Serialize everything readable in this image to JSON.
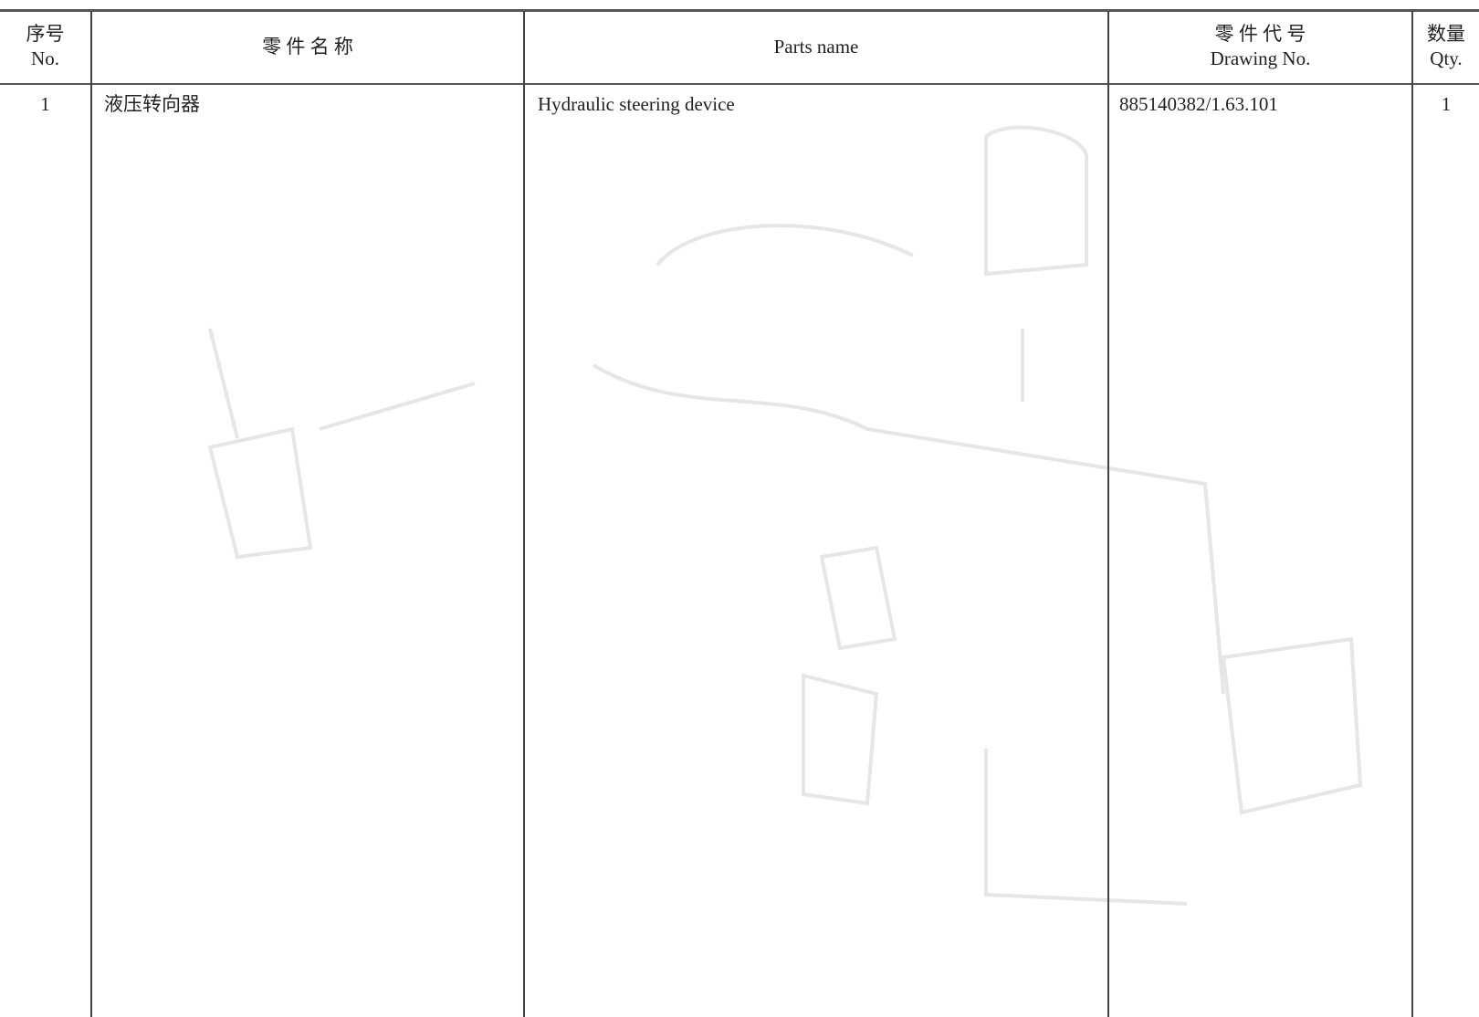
{
  "header": {
    "no": {
      "zh": "序号",
      "en": "No."
    },
    "name_zh": "零 件 名 称",
    "name_en": "Parts name",
    "drawing": {
      "zh": "零 件 代 号",
      "en": "Drawing No."
    },
    "qty": {
      "zh": "数量",
      "en": "Qty."
    }
  },
  "table": {
    "rows": [
      [
        "1",
        "液压转向器",
        "Hydraulic steering device",
        "885140382/1.63.101",
        "1"
      ]
    ]
  }
}
